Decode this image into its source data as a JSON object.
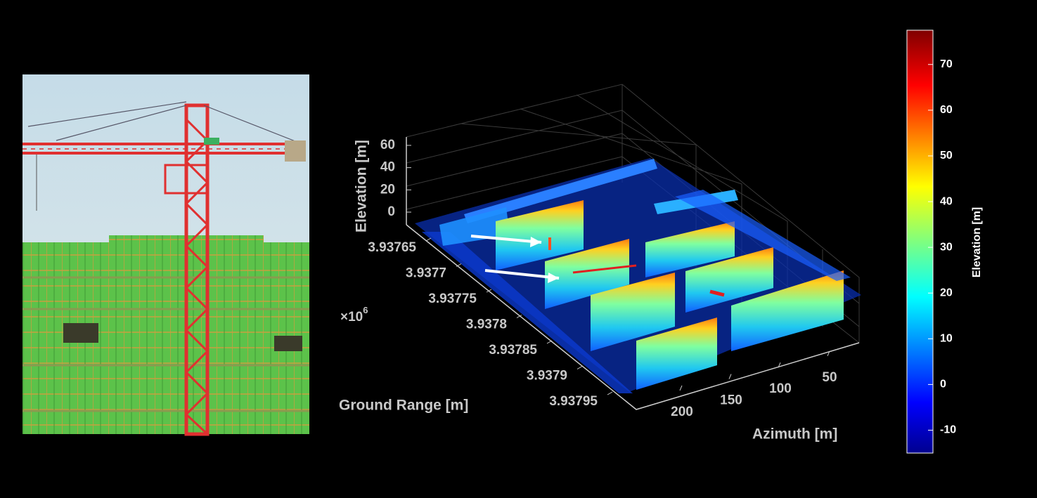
{
  "plot": {
    "elevation_axis": {
      "label": "Elevation [m]",
      "lim": [
        -12,
        68
      ],
      "ticks": [
        0,
        20,
        40,
        60
      ]
    },
    "ground_range_axis": {
      "label": "Ground Range [m]",
      "lim": [
        3.9376,
        3.938
      ],
      "ticks": [
        3.93765,
        3.9377,
        3.93775,
        3.9378,
        3.93785,
        3.9379,
        3.93795
      ],
      "multiplier": {
        "base": "×10",
        "exponent": "6"
      }
    },
    "azimuth_axis": {
      "label": "Azimuth [m]",
      "lim": [
        20,
        240
      ],
      "ticks": [
        50,
        100,
        150,
        200
      ]
    }
  },
  "colorbar": {
    "label": "Elevation [m]",
    "lim": [
      -15,
      77.5
    ],
    "ticks": [
      -10,
      0,
      10,
      20,
      30,
      40,
      50,
      60,
      70
    ]
  }
}
